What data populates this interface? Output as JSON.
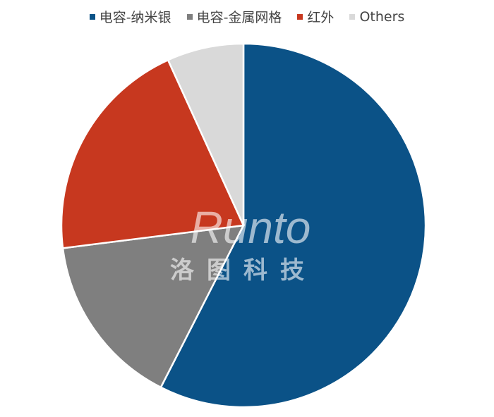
{
  "chart_data": {
    "type": "pie",
    "start_angle": "top, clockwise",
    "legend_position": "top",
    "series": [
      {
        "name": "电容-纳米银",
        "value": 57.5,
        "color": "#0b5287"
      },
      {
        "name": "电容-金属网格",
        "value": 15.5,
        "color": "#7f7f7f"
      },
      {
        "name": "红外",
        "value": 20.2,
        "color": "#c7381f"
      },
      {
        "name": "Others",
        "value": 6.8,
        "color": "#d9d9d9"
      }
    ]
  },
  "watermark": {
    "latin": "Runto",
    "chinese": "洛图科技"
  }
}
